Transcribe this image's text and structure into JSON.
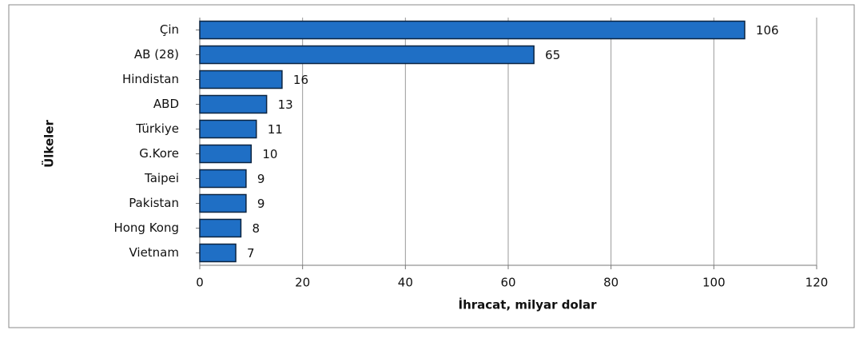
{
  "chart_data": {
    "type": "bar",
    "orientation": "horizontal",
    "categories": [
      "Çin",
      "AB (28)",
      "Hindistan",
      "ABD",
      "Türkiye",
      "G.Kore",
      "Taipei",
      "Pakistan",
      "Hong Kong",
      "Vietnam"
    ],
    "values": [
      106,
      65,
      16,
      13,
      11,
      10,
      9,
      9,
      8,
      7
    ],
    "color": "#1f6fc5",
    "xlim": [
      0,
      120
    ],
    "xticks": [
      0,
      20,
      40,
      60,
      80,
      100,
      120
    ],
    "grid": true,
    "x_label": "İhracat, milyar dolar",
    "y_label": "Ülkeler"
  }
}
